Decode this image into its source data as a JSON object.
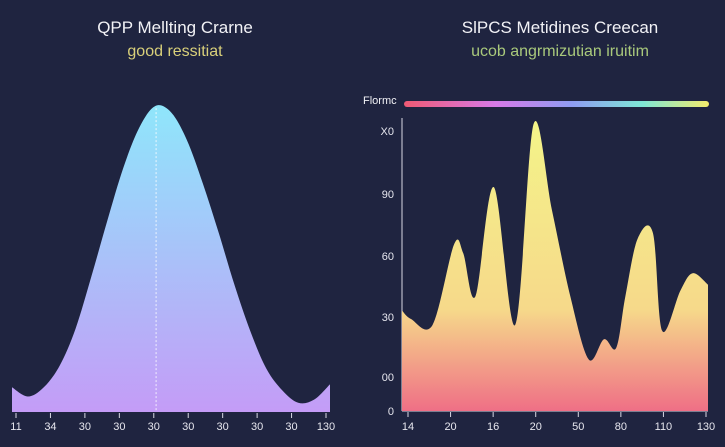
{
  "chart_data": [
    {
      "type": "area",
      "title": "QPP Mellting Crarne",
      "subtitle": "good ressitiat",
      "x_tick_labels": [
        "11",
        "34",
        "30",
        "30",
        "30",
        "30",
        "30",
        "30",
        "30",
        "130"
      ],
      "x": [
        0,
        0.05,
        0.1,
        0.15,
        0.2,
        0.25,
        0.3,
        0.35,
        0.4,
        0.45,
        0.5,
        0.55,
        0.6,
        0.65,
        0.7,
        0.75,
        0.8,
        0.85,
        0.9,
        0.95,
        1.0
      ],
      "y": [
        8,
        5,
        8,
        15,
        27,
        44,
        62,
        79,
        92,
        99,
        97,
        88,
        74,
        58,
        41,
        26,
        14,
        7,
        3,
        4,
        9
      ],
      "colors": {
        "top": "#8fe6fb",
        "bottom": "#c49cf7",
        "marker": "#ffffff"
      }
    },
    {
      "type": "area",
      "title": "SlPCS Metidines Creecan",
      "subtitle": "ucob angrmizutian iruitim",
      "legend_label": "Flormc",
      "y_tick_labels": [
        "X0",
        "90",
        "60",
        "30",
        "00",
        "0"
      ],
      "x_tick_labels": [
        "14",
        "20",
        "16",
        "20",
        "50",
        "80",
        "110",
        "130"
      ],
      "ylim": [
        0,
        100
      ],
      "x": [
        0,
        0.03,
        0.1,
        0.17,
        0.2,
        0.24,
        0.3,
        0.37,
        0.43,
        0.49,
        0.55,
        0.61,
        0.66,
        0.7,
        0.73,
        0.77,
        0.82,
        0.85,
        0.91,
        0.95,
        1.0
      ],
      "y": [
        35,
        32,
        30,
        58,
        55,
        40,
        78,
        30,
        100,
        70,
        40,
        18,
        25,
        22,
        40,
        60,
        62,
        28,
        42,
        48,
        44
      ],
      "colors": {
        "top": "#f4f489",
        "bottom": "#ef6f86",
        "legend": [
          "#ef5a74",
          "#d67ae8",
          "#8f9cf2",
          "#7ee7d6",
          "#f4ec6c"
        ]
      }
    }
  ]
}
